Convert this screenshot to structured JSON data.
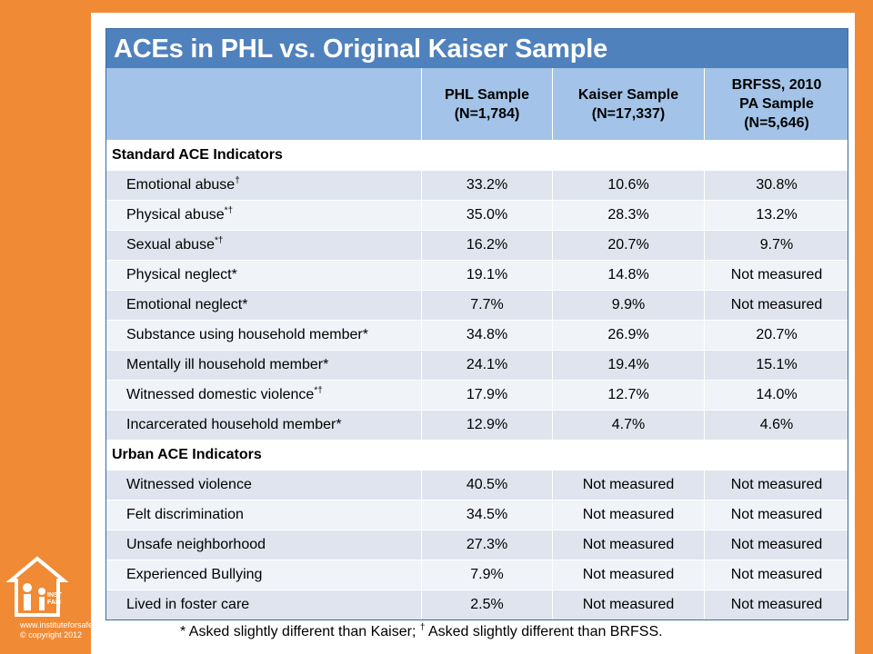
{
  "title": "ACEs in PHL vs. Original Kaiser Sample",
  "columns": [
    {
      "line1": "PHL Sample",
      "line2": "(N=1,784)",
      "line3": ""
    },
    {
      "line1": "Kaiser Sample",
      "line2": "(N=17,337)",
      "line3": ""
    },
    {
      "line1": "BRFSS, 2010",
      "line2": "PA Sample",
      "line3": "(N=5,646)"
    }
  ],
  "sections": [
    {
      "heading": "Standard ACE Indicators",
      "rows": [
        {
          "label": "Emotional abuse",
          "mark": "†",
          "phl": "33.2%",
          "kaiser": "10.6%",
          "brfss": "30.8%"
        },
        {
          "label": "Physical abuse",
          "mark": "*†",
          "phl": "35.0%",
          "kaiser": "28.3%",
          "brfss": "13.2%"
        },
        {
          "label": "Sexual abuse",
          "mark": "*†",
          "phl": "16.2%",
          "kaiser": "20.7%",
          "brfss": "9.7%"
        },
        {
          "label": "Physical neglect*",
          "mark": "",
          "phl": "19.1%",
          "kaiser": "14.8%",
          "brfss": "Not measured"
        },
        {
          "label": "Emotional neglect*",
          "mark": "",
          "phl": "7.7%",
          "kaiser": "9.9%",
          "brfss": "Not measured"
        },
        {
          "label": "Substance using household member*",
          "mark": "",
          "phl": "34.8%",
          "kaiser": "26.9%",
          "brfss": "20.7%"
        },
        {
          "label": "Mentally ill household member*",
          "mark": "",
          "phl": "24.1%",
          "kaiser": "19.4%",
          "brfss": "15.1%"
        },
        {
          "label": "Witnessed domestic violence",
          "mark": "*†",
          "phl": "17.9%",
          "kaiser": "12.7%",
          "brfss": "14.0%"
        },
        {
          "label": "Incarcerated household member*",
          "mark": "",
          "phl": "12.9%",
          "kaiser": "4.7%",
          "brfss": "4.6%"
        }
      ]
    },
    {
      "heading": "Urban ACE Indicators",
      "rows": [
        {
          "label": "Witnessed violence",
          "mark": "",
          "phl": "40.5%",
          "kaiser": "Not measured",
          "brfss": "Not measured"
        },
        {
          "label": "Felt discrimination",
          "mark": "",
          "phl": "34.5%",
          "kaiser": "Not measured",
          "brfss": "Not measured"
        },
        {
          "label": "Unsafe neighborhood",
          "mark": "",
          "phl": "27.3%",
          "kaiser": "Not measured",
          "brfss": "Not measured"
        },
        {
          "label": "Experienced Bullying",
          "mark": "",
          "phl": "7.9%",
          "kaiser": "Not measured",
          "brfss": "Not measured"
        },
        {
          "label": "Lived in foster care",
          "mark": "",
          "phl": "2.5%",
          "kaiser": "Not measured",
          "brfss": "Not measured"
        }
      ]
    }
  ],
  "footnote": {
    "part1": "* Asked slightly different than Kaiser; ",
    "dagger": "†",
    "part2": " Asked slightly different than BRFSS."
  },
  "logo": {
    "name": "INSTITUTE FOR SAFE FAMILIES",
    "url": "www.instituteforsafefamilies.org",
    "copyright": "© copyright 2012"
  },
  "colors": {
    "background": "#f08a35",
    "title_bar": "#4f81bd",
    "header": "#a3c4e8",
    "row_dark": "#dfe4ee",
    "row_light": "#f0f3f8"
  }
}
